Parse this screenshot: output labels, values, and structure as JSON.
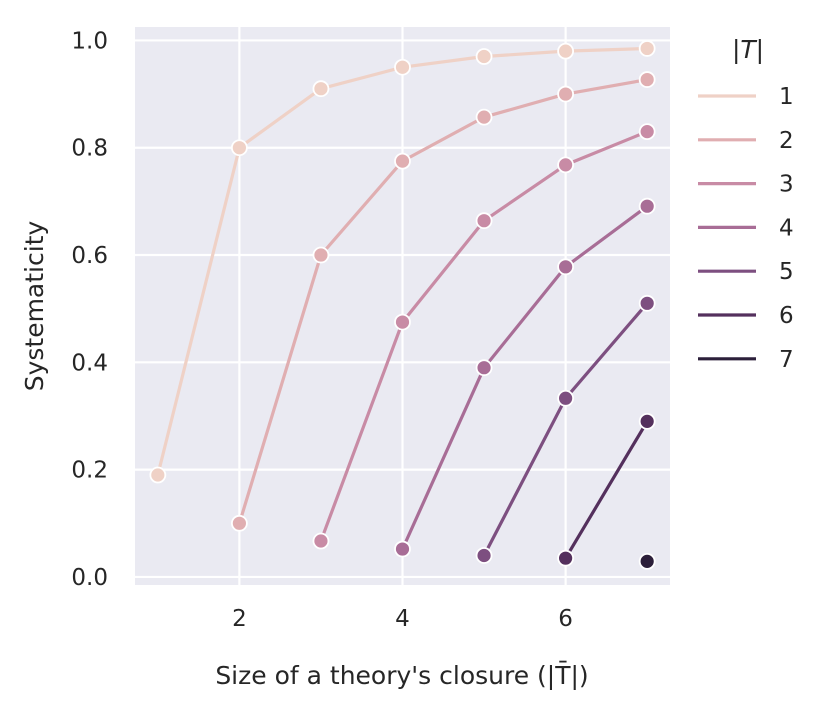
{
  "chart_data": {
    "type": "line",
    "xlabel": "Size of a theory's closure (|T̄|)",
    "ylabel": "Systematicity",
    "xlim": [
      0.72,
      7.28
    ],
    "ylim": [
      -0.015,
      1.025
    ],
    "x_ticks": [
      2,
      4,
      6
    ],
    "y_ticks": [
      0.0,
      0.2,
      0.4,
      0.6,
      0.8,
      1.0
    ],
    "x_tick_labels": [
      "2",
      "4",
      "6"
    ],
    "y_tick_labels": [
      "0.0",
      "0.2",
      "0.4",
      "0.6",
      "0.8",
      "1.0"
    ],
    "grid": true,
    "legend_title": "|T|",
    "legend_placement": "outside-right",
    "background": "#eaeaf2",
    "series": [
      {
        "name": "1",
        "color": "#efd1c6",
        "points": [
          [
            1,
            0.19
          ],
          [
            2,
            0.8
          ],
          [
            3,
            0.91
          ],
          [
            4,
            0.95
          ],
          [
            5,
            0.97
          ],
          [
            6,
            0.98
          ],
          [
            7,
            0.985
          ]
        ]
      },
      {
        "name": "2",
        "color": "#e0aeb1",
        "points": [
          [
            2,
            0.1
          ],
          [
            3,
            0.6
          ],
          [
            4,
            0.775
          ],
          [
            5,
            0.857
          ],
          [
            6,
            0.9
          ],
          [
            7,
            0.927
          ]
        ]
      },
      {
        "name": "3",
        "color": "#c88ba5",
        "points": [
          [
            3,
            0.067
          ],
          [
            4,
            0.475
          ],
          [
            5,
            0.664
          ],
          [
            6,
            0.768
          ],
          [
            7,
            0.83
          ]
        ]
      },
      {
        "name": "4",
        "color": "#a86d96",
        "points": [
          [
            4,
            0.052
          ],
          [
            5,
            0.39
          ],
          [
            6,
            0.578
          ],
          [
            7,
            0.691
          ]
        ]
      },
      {
        "name": "5",
        "color": "#7d4f80",
        "points": [
          [
            5,
            0.04
          ],
          [
            6,
            0.333
          ],
          [
            7,
            0.51
          ]
        ]
      },
      {
        "name": "6",
        "color": "#54305d",
        "points": [
          [
            6,
            0.035
          ],
          [
            7,
            0.29
          ]
        ]
      },
      {
        "name": "7",
        "color": "#2c1f3a",
        "points": [
          [
            7,
            0.029
          ]
        ]
      }
    ]
  }
}
